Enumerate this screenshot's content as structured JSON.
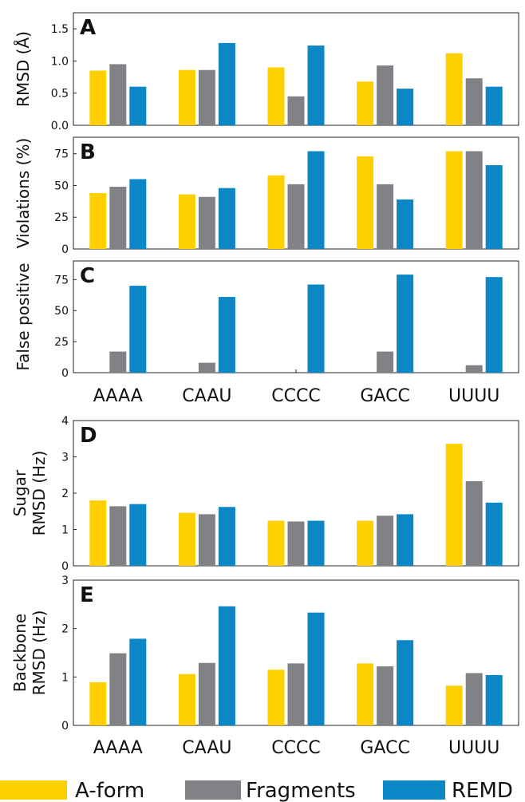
{
  "chart_data": [
    {
      "type": "bar",
      "panel_label": "A",
      "ylabel": "RMSD (Å)",
      "ylim": [
        0,
        1.75
      ],
      "yticks": [
        "0.0",
        "0.5",
        "1.0",
        "1.5"
      ],
      "ytick_values": [
        0,
        0.5,
        1.0,
        1.5
      ],
      "categories": [
        "AAAA",
        "CAAU",
        "CCCC",
        "GACC",
        "UUUU"
      ],
      "show_category_labels": false,
      "series": [
        {
          "name": "A-form",
          "color": "#FFD000",
          "values": [
            0.85,
            0.86,
            0.9,
            0.68,
            1.12
          ]
        },
        {
          "name": "Fragments",
          "color": "#808285",
          "values": [
            0.95,
            0.86,
            0.45,
            0.93,
            0.73
          ]
        },
        {
          "name": "REMD",
          "color": "#0A87C4",
          "values": [
            0.6,
            1.28,
            1.24,
            0.57,
            0.6
          ]
        }
      ]
    },
    {
      "type": "bar",
      "panel_label": "B",
      "ylabel": "Violations (%)",
      "ylim": [
        0,
        88
      ],
      "yticks": [
        "0",
        "25",
        "50",
        "75"
      ],
      "ytick_values": [
        0,
        25,
        50,
        75
      ],
      "categories": [
        "AAAA",
        "CAAU",
        "CCCC",
        "GACC",
        "UUUU"
      ],
      "show_category_labels": false,
      "series": [
        {
          "name": "A-form",
          "color": "#FFD000",
          "values": [
            44,
            43,
            58,
            73,
            77
          ]
        },
        {
          "name": "Fragments",
          "color": "#808285",
          "values": [
            49,
            41,
            51,
            51,
            77
          ]
        },
        {
          "name": "REMD",
          "color": "#0A87C4",
          "values": [
            55,
            48,
            77,
            39,
            66
          ]
        }
      ]
    },
    {
      "type": "bar",
      "panel_label": "C",
      "ylabel": "False positive",
      "ylim": [
        0,
        90
      ],
      "yticks": [
        "0",
        "25",
        "50",
        "75"
      ],
      "ytick_values": [
        0,
        25,
        50,
        75
      ],
      "categories": [
        "AAAA",
        "CAAU",
        "CCCC",
        "GACC",
        "UUUU"
      ],
      "show_category_labels": true,
      "series": [
        {
          "name": "A-form",
          "color": "#FFD000",
          "values": [
            0,
            0,
            0,
            0,
            0
          ]
        },
        {
          "name": "Fragments",
          "color": "#808285",
          "values": [
            17,
            8,
            0,
            17,
            6
          ]
        },
        {
          "name": "REMD",
          "color": "#0A87C4",
          "values": [
            70,
            61,
            71,
            79,
            77
          ]
        }
      ]
    },
    {
      "type": "bar",
      "panel_label": "D",
      "ylabel_lines": [
        "Sugar",
        "RMSD (Hz)"
      ],
      "ylim": [
        0,
        4
      ],
      "yticks": [
        "0",
        "1",
        "2",
        "3",
        "4"
      ],
      "ytick_values": [
        0,
        1,
        2,
        3,
        4
      ],
      "categories": [
        "AAAA",
        "CAAU",
        "CCCC",
        "GACC",
        "UUUU"
      ],
      "show_category_labels": false,
      "series": [
        {
          "name": "A-form",
          "color": "#FFD000",
          "values": [
            1.8,
            1.46,
            1.24,
            1.24,
            3.36
          ]
        },
        {
          "name": "Fragments",
          "color": "#808285",
          "values": [
            1.64,
            1.42,
            1.22,
            1.38,
            2.33
          ]
        },
        {
          "name": "REMD",
          "color": "#0A87C4",
          "values": [
            1.7,
            1.62,
            1.24,
            1.42,
            1.74
          ]
        }
      ]
    },
    {
      "type": "bar",
      "panel_label": "E",
      "ylabel_lines": [
        "Backbone",
        "RMSD (Hz)"
      ],
      "ylim": [
        0,
        3
      ],
      "yticks": [
        "0",
        "1",
        "2",
        "3"
      ],
      "ytick_values": [
        0,
        1,
        2,
        3
      ],
      "categories": [
        "AAAA",
        "CAAU",
        "CCCC",
        "GACC",
        "UUUU"
      ],
      "show_category_labels": true,
      "series": [
        {
          "name": "A-form",
          "color": "#FFD000",
          "values": [
            0.89,
            1.06,
            1.15,
            1.28,
            0.82
          ]
        },
        {
          "name": "Fragments",
          "color": "#808285",
          "values": [
            1.49,
            1.29,
            1.28,
            1.22,
            1.08
          ]
        },
        {
          "name": "REMD",
          "color": "#0A87C4",
          "values": [
            1.79,
            2.46,
            2.33,
            1.76,
            1.04
          ]
        }
      ]
    }
  ],
  "legend": {
    "placement": "bottom",
    "items": [
      {
        "label": "A-form",
        "color": "#FFD000"
      },
      {
        "label": "Fragments",
        "color": "#808285"
      },
      {
        "label": "REMD",
        "color": "#0A87C4"
      }
    ]
  }
}
